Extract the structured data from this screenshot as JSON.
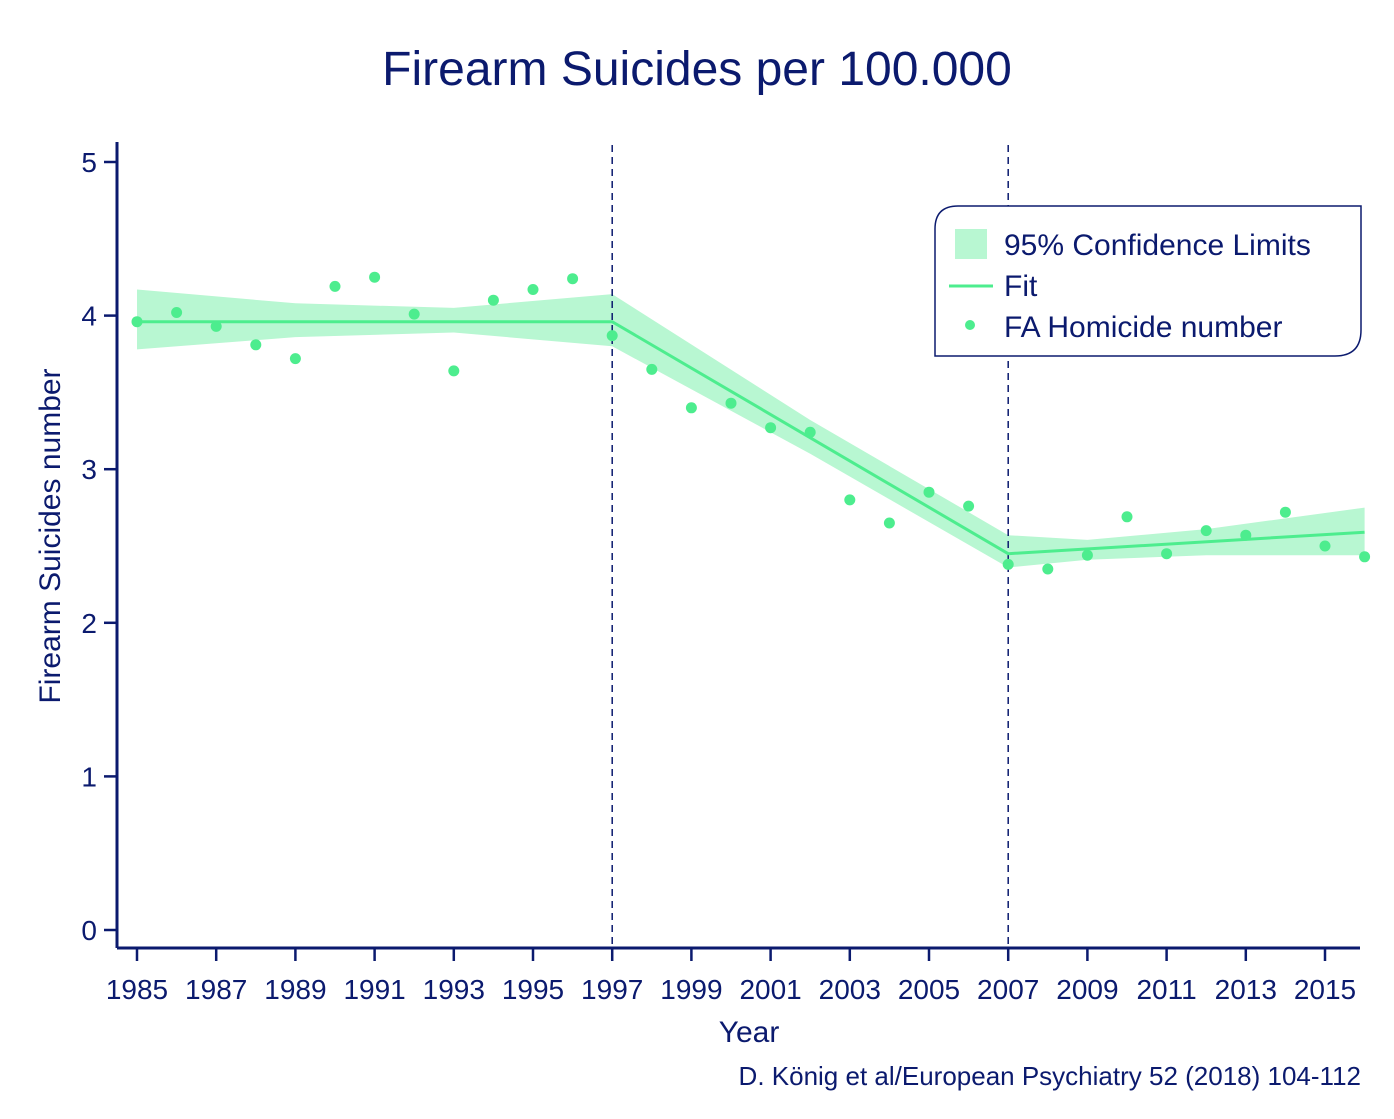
{
  "colors": {
    "axis": "#0b1a6e",
    "fit": "#4ded8e",
    "band": "#b8f7d2",
    "points": "#4ded8e"
  },
  "chart_data": {
    "type": "scatter",
    "title": "Firearm Suicides per 100.000",
    "xlabel": "Year",
    "ylabel": "Firearm Suicides number",
    "xlim": [
      1984.5,
      2016.8
    ],
    "ylim": [
      -0.12,
      5.08
    ],
    "x_ticks": [
      1985,
      1987,
      1989,
      1991,
      1993,
      1995,
      1997,
      1999,
      2001,
      2003,
      2005,
      2007,
      2009,
      2011,
      2013,
      2015
    ],
    "y_ticks": [
      0,
      1,
      2,
      3,
      4,
      5
    ],
    "grid": false,
    "legend_position": "top-right",
    "legend": {
      "band_label": "95% Confidence Limits",
      "fit_label": "Fit",
      "points_label": "FA Homicide number"
    },
    "breakpoints": [
      1997,
      2007
    ],
    "series": [
      {
        "name": "FA Homicide number",
        "kind": "points",
        "x": [
          1985,
          1986,
          1987,
          1988,
          1989,
          1990,
          1991,
          1992,
          1993,
          1994,
          1995,
          1996,
          1997,
          1998,
          1999,
          2000,
          2001,
          2002,
          2003,
          2004,
          2005,
          2006,
          2007,
          2008,
          2009,
          2010,
          2011,
          2012,
          2013,
          2014,
          2015,
          2016
        ],
        "y": [
          3.96,
          4.02,
          3.93,
          3.81,
          3.72,
          4.19,
          4.25,
          4.01,
          3.64,
          4.1,
          4.17,
          4.24,
          3.87,
          3.65,
          3.4,
          3.43,
          3.27,
          3.24,
          2.8,
          2.65,
          2.85,
          2.76,
          2.38,
          2.35,
          2.44,
          2.69,
          2.45,
          2.6,
          2.57,
          2.72,
          2.5,
          2.43
        ]
      },
      {
        "name": "Fit",
        "kind": "line",
        "x": [
          1985,
          1997,
          2007,
          2016
        ],
        "y": [
          3.96,
          3.96,
          2.45,
          2.59
        ]
      },
      {
        "name": "95% Confidence Limits",
        "kind": "band",
        "x": [
          1985,
          1989,
          1993,
          1997,
          2002,
          2007,
          2009,
          2012,
          2016
        ],
        "lower": [
          3.78,
          3.86,
          3.89,
          3.8,
          3.1,
          2.36,
          2.41,
          2.44,
          2.44
        ],
        "upper": [
          4.17,
          4.08,
          4.05,
          4.14,
          3.32,
          2.57,
          2.54,
          2.61,
          2.75
        ]
      }
    ]
  },
  "source_note": "D. König et al/European Psychiatry 52 (2018) 104-112"
}
